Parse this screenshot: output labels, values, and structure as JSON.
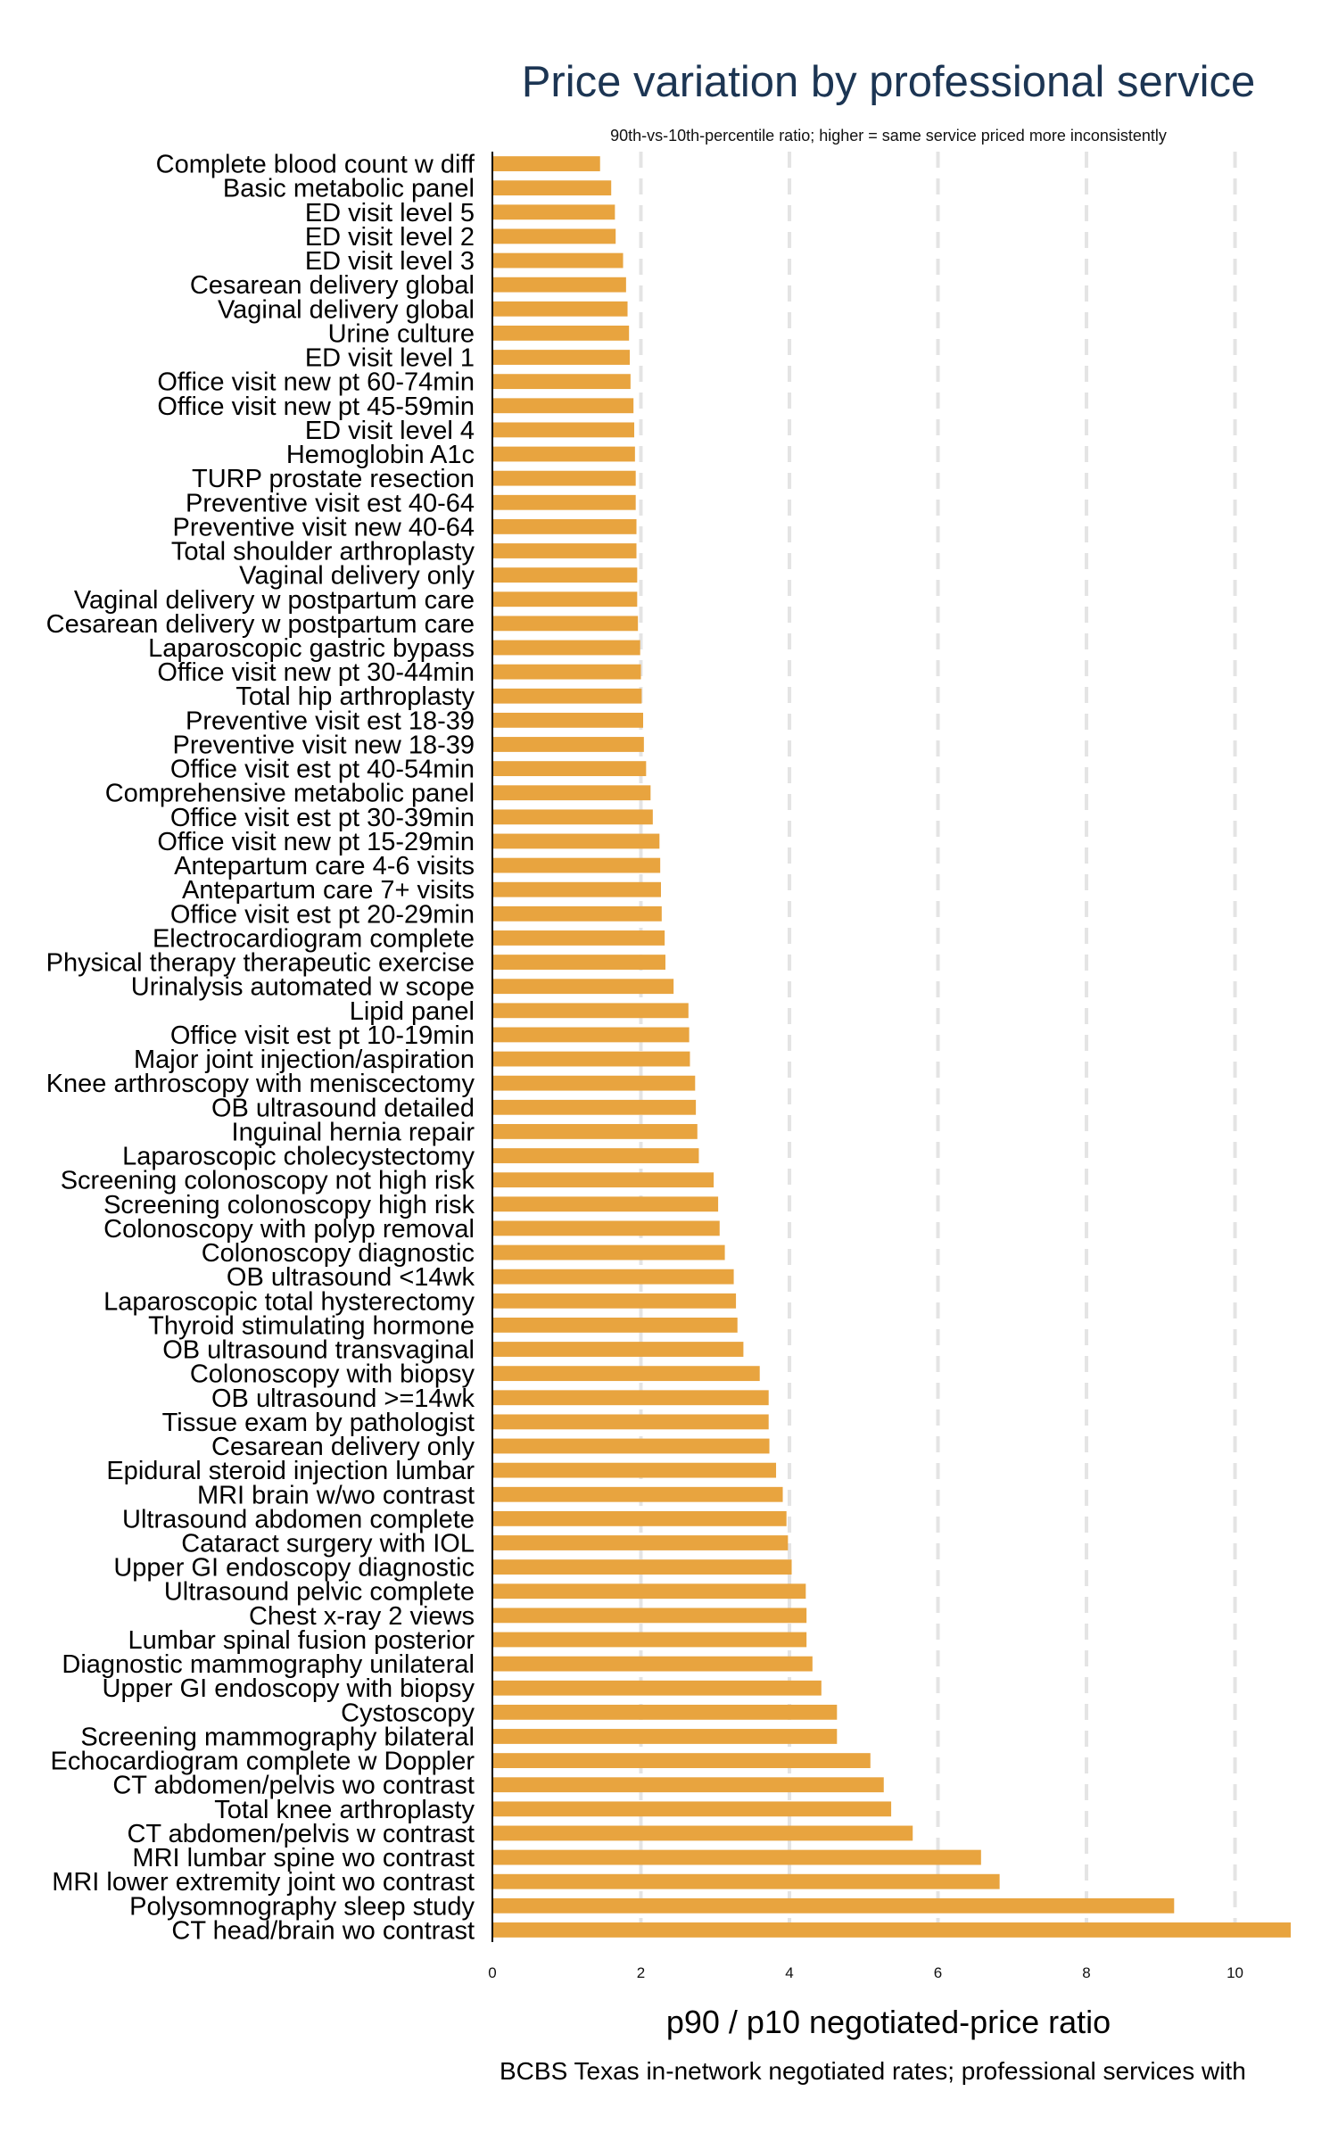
{
  "chart_data": {
    "type": "bar",
    "orientation": "horizontal",
    "title": "Price variation by professional service",
    "subtitle": "90th-vs-10th-percentile ratio; higher = same service priced more inconsistently",
    "xlabel": "p90 / p10 negotiated-price ratio",
    "caption": "BCBS Texas in-network negotiated rates; professional services with",
    "xlim": [
      0,
      10.75
    ],
    "xticks": [
      "0",
      "2",
      "4",
      "6",
      "8",
      "10"
    ],
    "grid": "vertical dashed",
    "bar_color": "#e8a43f",
    "grid_color": "#e4e4e4",
    "categories": [
      "Complete blood count w diff",
      "Basic metabolic panel",
      "ED visit level 5",
      "ED visit level 2",
      "ED visit level 3",
      "Cesarean delivery global",
      "Vaginal delivery global",
      "Urine culture",
      "ED visit level 1",
      "Office visit new pt 60-74min",
      "Office visit new pt 45-59min",
      "ED visit level 4",
      "Hemoglobin A1c",
      "TURP prostate resection",
      "Preventive visit est 40-64",
      "Preventive visit new 40-64",
      "Total shoulder arthroplasty",
      "Vaginal delivery only",
      "Vaginal delivery w postpartum care",
      "Cesarean delivery w postpartum care",
      "Laparoscopic gastric bypass",
      "Office visit new pt 30-44min",
      "Total hip arthroplasty",
      "Preventive visit est 18-39",
      "Preventive visit new 18-39",
      "Office visit est pt 40-54min",
      "Comprehensive metabolic panel",
      "Office visit est pt 30-39min",
      "Office visit new pt 15-29min",
      "Antepartum care 4-6 visits",
      "Antepartum care 7+ visits",
      "Office visit est pt 20-29min",
      "Electrocardiogram complete",
      "Physical therapy therapeutic exercise",
      "Urinalysis automated w scope",
      "Lipid panel",
      "Office visit est pt 10-19min",
      "Major joint injection/aspiration",
      "Knee arthroscopy with meniscectomy",
      "OB ultrasound detailed",
      "Inguinal hernia repair",
      "Laparoscopic cholecystectomy",
      "Screening colonoscopy not high risk",
      "Screening colonoscopy high risk",
      "Colonoscopy with polyp removal",
      "Colonoscopy diagnostic",
      "OB ultrasound <14wk",
      "Laparoscopic total hysterectomy",
      "Thyroid stimulating hormone",
      "OB ultrasound transvaginal",
      "Colonoscopy with biopsy",
      "OB ultrasound >=14wk",
      "Tissue exam by pathologist",
      "Cesarean delivery only",
      "Epidural steroid injection lumbar",
      "MRI brain w/wo contrast",
      "Ultrasound abdomen complete",
      "Cataract surgery with IOL",
      "Upper GI endoscopy diagnostic",
      "Ultrasound pelvic complete",
      "Chest x-ray 2 views",
      "Lumbar spinal fusion posterior",
      "Diagnostic mammography unilateral",
      "Upper GI endoscopy with biopsy",
      "Cystoscopy",
      "Screening mammography bilateral",
      "Echocardiogram complete w Doppler",
      "CT abdomen/pelvis wo contrast",
      "Total knee arthroplasty",
      "CT abdomen/pelvis w contrast",
      "MRI lumbar spine wo contrast",
      "MRI lower extremity joint wo contrast",
      "Polysomnography sleep study",
      "CT head/brain wo contrast"
    ],
    "values": [
      1.45,
      1.6,
      1.65,
      1.66,
      1.76,
      1.8,
      1.82,
      1.84,
      1.85,
      1.86,
      1.9,
      1.91,
      1.92,
      1.93,
      1.93,
      1.94,
      1.94,
      1.95,
      1.95,
      1.96,
      1.99,
      2.0,
      2.01,
      2.03,
      2.04,
      2.07,
      2.13,
      2.16,
      2.25,
      2.26,
      2.27,
      2.28,
      2.32,
      2.33,
      2.44,
      2.64,
      2.65,
      2.66,
      2.73,
      2.74,
      2.76,
      2.78,
      2.98,
      3.04,
      3.06,
      3.13,
      3.25,
      3.28,
      3.3,
      3.38,
      3.6,
      3.72,
      3.72,
      3.73,
      3.82,
      3.91,
      3.96,
      3.98,
      4.03,
      4.22,
      4.23,
      4.23,
      4.31,
      4.43,
      4.64,
      4.64,
      5.09,
      5.27,
      5.37,
      5.66,
      6.58,
      6.83,
      9.18,
      10.75
    ]
  }
}
